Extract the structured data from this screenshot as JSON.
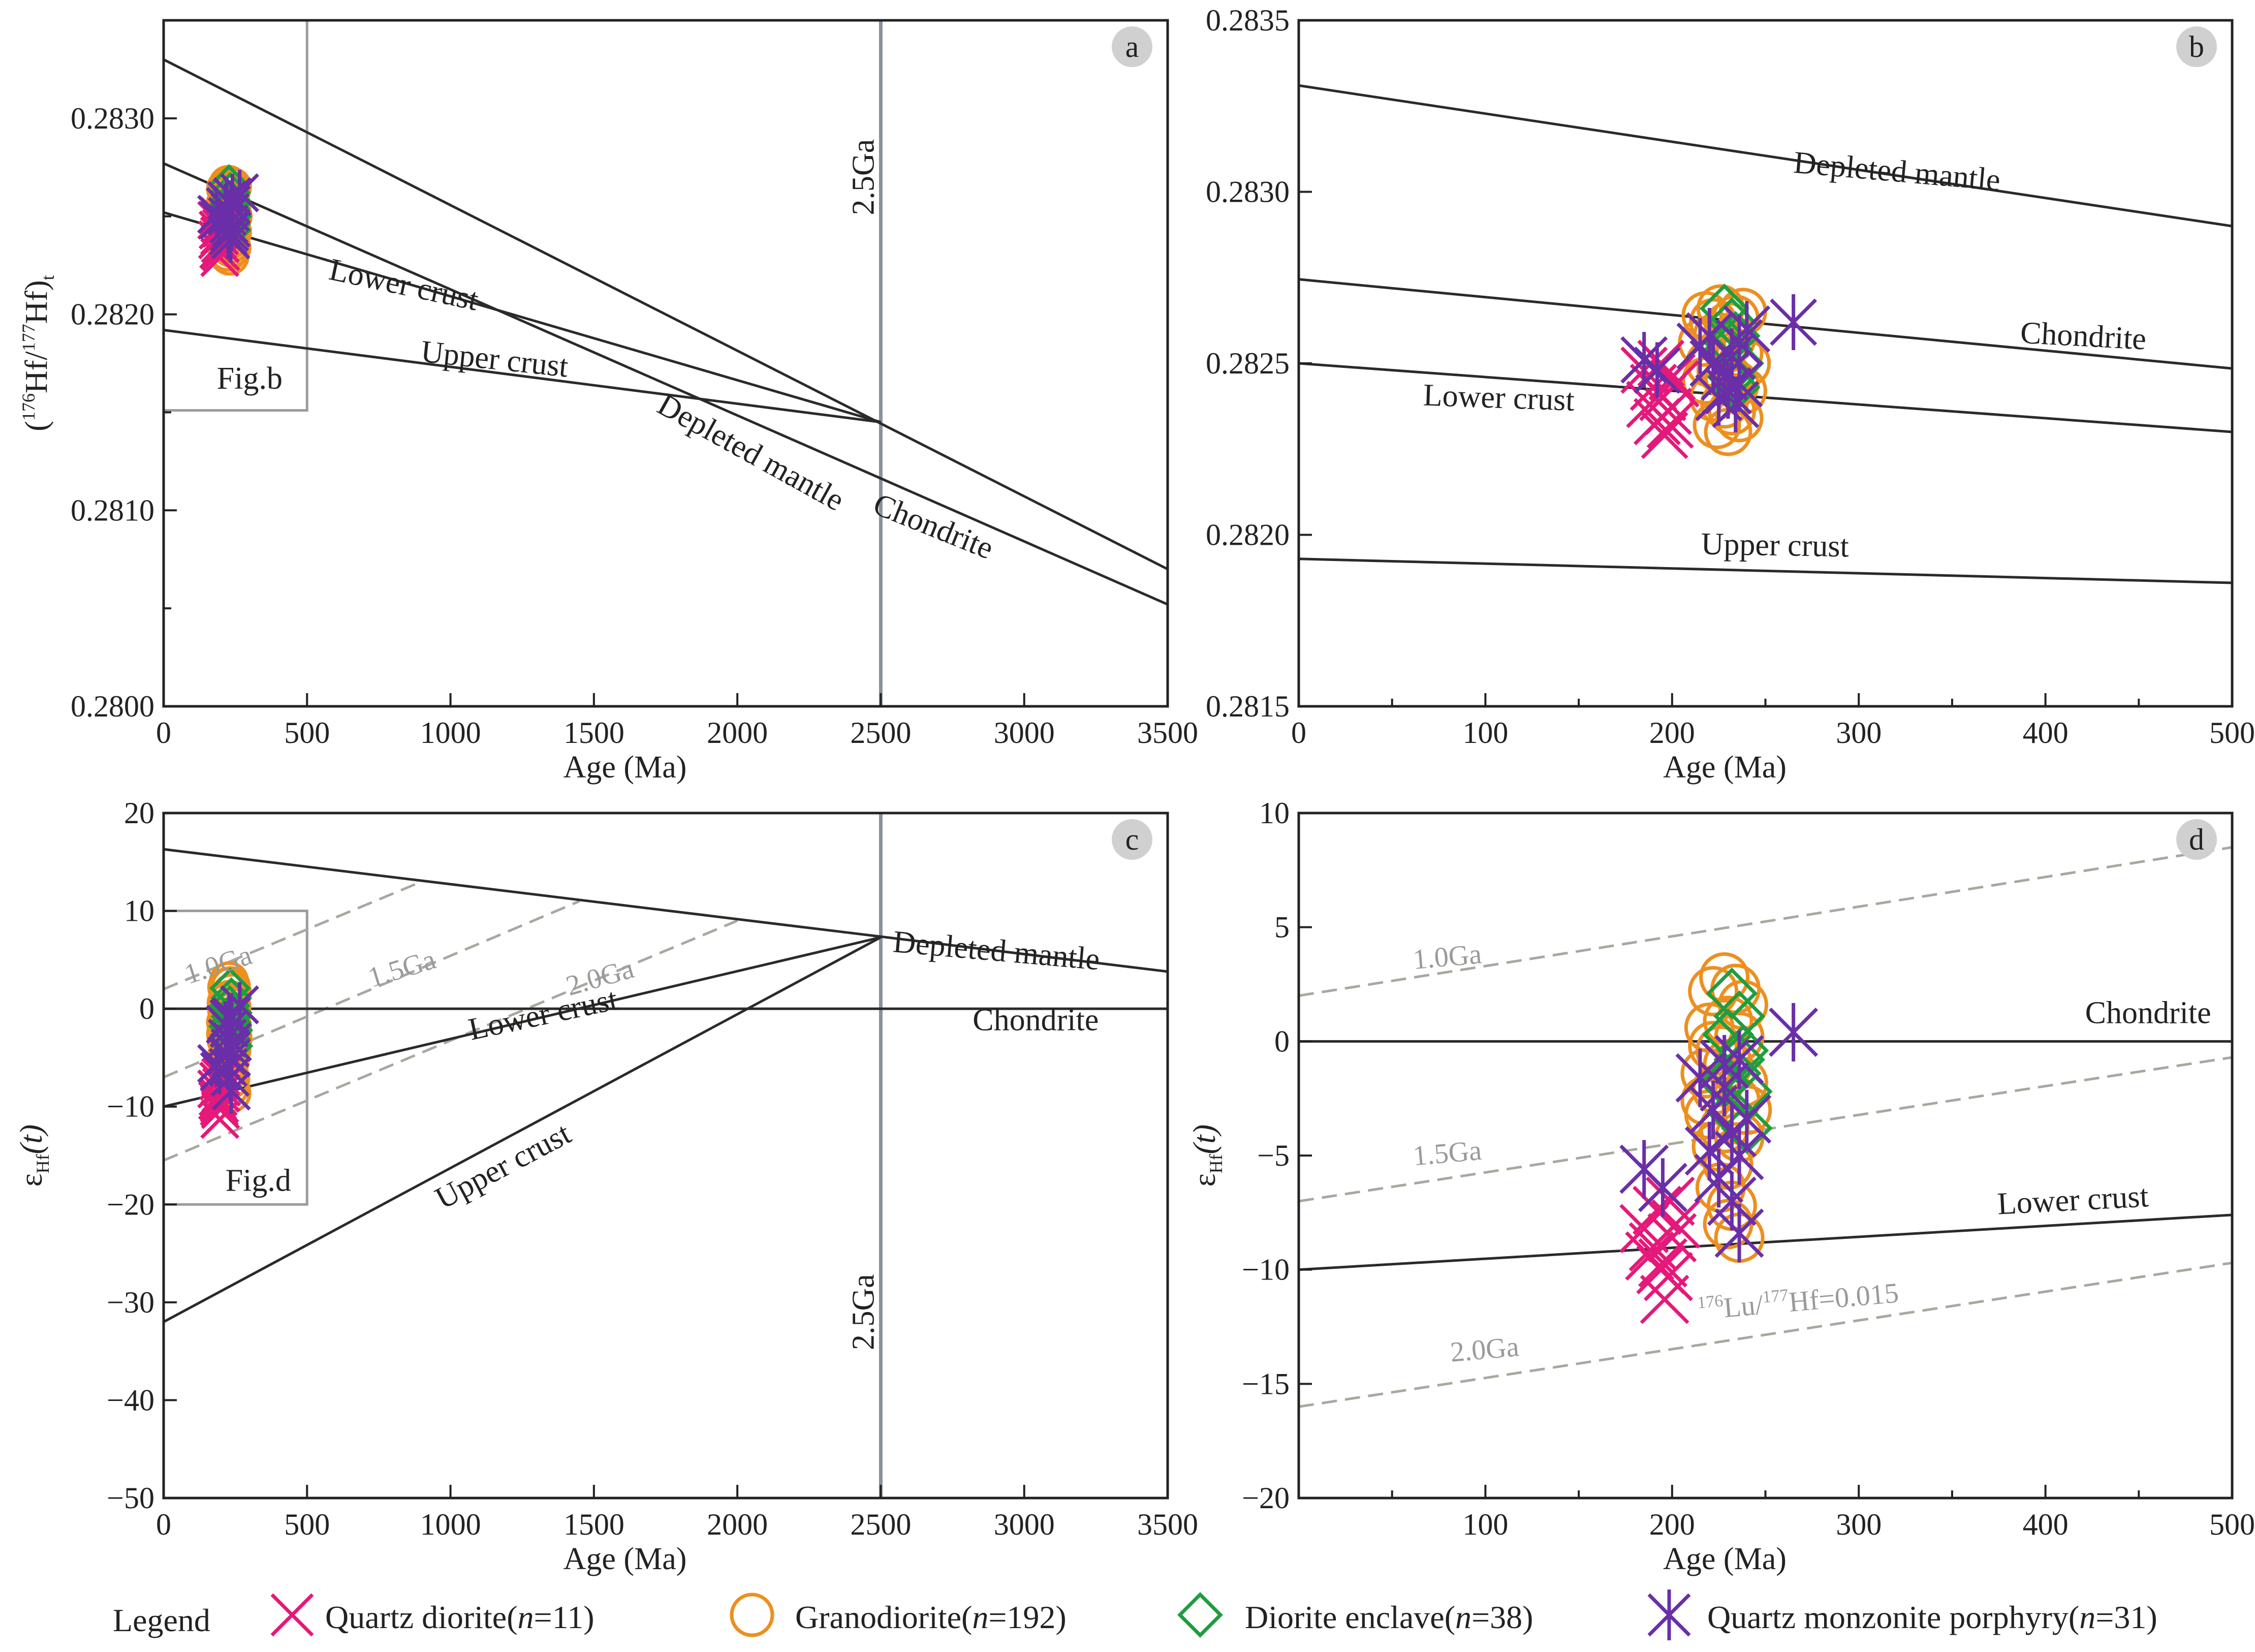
{
  "legend": {
    "title": "Legend",
    "entries": [
      {
        "key": "qd",
        "label": "Quartz diorite(",
        "n": "n",
        "rest": "=11)",
        "color": "#e5197a",
        "marker": "x-mark-icon"
      },
      {
        "key": "gd",
        "label": "Granodiorite(",
        "n": "n",
        "rest": "=192)",
        "color": "#ed8f1f",
        "marker": "circle-mark-icon"
      },
      {
        "key": "de",
        "label": "Diorite enclave(",
        "n": "n",
        "rest": "=38)",
        "color": "#1f9d3f",
        "marker": "diamond-mark-icon"
      },
      {
        "key": "qm",
        "label": "Quartz monzonite porphyry(",
        "n": "n",
        "rest": "=31)",
        "color": "#6a2fa8",
        "marker": "asterisk-mark-icon"
      }
    ]
  },
  "chart_data": [
    {
      "panel": "a",
      "type": "line",
      "xlabel": "Age (Ma)",
      "ylabel": {
        "open": "(",
        "sup1": "176",
        "t1": "Hf/",
        "sup2": "177",
        "t2": "Hf)",
        "sub": "t"
      },
      "xlim": [
        0,
        3500
      ],
      "ylim": [
        0.28,
        0.2835
      ],
      "xticks": [
        0,
        500,
        1000,
        1500,
        2000,
        2500,
        3000,
        3500
      ],
      "yticks": [
        0.28,
        0.281,
        0.282,
        0.283
      ],
      "ytick_labels": [
        "0.2800",
        "0.2810",
        "0.2820",
        "0.2830"
      ],
      "minor_yticks": [
        0.2805,
        0.2815,
        0.2825
      ],
      "vline": {
        "x": 2500,
        "label": "2.5Ga",
        "label_y": 0.2827
      },
      "lines": [
        {
          "name": "Depleted mantle",
          "x": [
            0,
            3500
          ],
          "y": [
            0.2833,
            0.2807
          ],
          "label": "Depleted mantle",
          "lx": 2030,
          "ly": 0.28125,
          "rot": 29
        },
        {
          "name": "Chondrite",
          "x": [
            0,
            3500
          ],
          "y": [
            0.28277,
            0.28052
          ],
          "label": "Chondrite",
          "lx": 2670,
          "ly": 0.28087,
          "rot": 22
        },
        {
          "name": "Lower crust",
          "x": [
            0,
            2500
          ],
          "y": [
            0.28252,
            0.28145
          ],
          "label": "Lower crust",
          "lx": 830,
          "ly": 0.2821,
          "rot": 12
        },
        {
          "name": "Upper crust",
          "x": [
            0,
            2500
          ],
          "y": [
            0.28192,
            0.28145
          ],
          "label": "Upper crust",
          "lx": 1150,
          "ly": 0.28172,
          "rot": 6
        }
      ],
      "inset": {
        "x0": 0,
        "x1": 500,
        "y0": 0.28151,
        "y1": 0.2835,
        "label": "Fig.b",
        "lx": 300,
        "ly": 0.28162
      },
      "badge": "a"
    },
    {
      "panel": "b",
      "type": "line",
      "xlabel": "Age (Ma)",
      "xlim": [
        0,
        500
      ],
      "ylim": [
        0.2815,
        0.2835
      ],
      "xticks": [
        0,
        100,
        200,
        300,
        400,
        500
      ],
      "yticks": [
        0.2815,
        0.282,
        0.2825,
        0.283,
        0.2835
      ],
      "ytick_labels": [
        "0.2815",
        "0.2820",
        "0.2825",
        "0.2830",
        "0.2835"
      ],
      "minor_xticks": [
        50,
        150,
        250,
        350,
        450
      ],
      "lines": [
        {
          "name": "Depleted mantle",
          "x": [
            0,
            500
          ],
          "y": [
            0.28331,
            0.2829
          ],
          "label": "Depleted mantle",
          "lx": 320,
          "ly": 0.28303,
          "rot": 5
        },
        {
          "name": "Chondrite",
          "x": [
            0,
            500
          ],
          "y": [
            0.282745,
            0.282485
          ],
          "label": "Chondrite",
          "lx": 420,
          "ly": 0.28255,
          "rot": 3
        },
        {
          "name": "Lower crust",
          "x": [
            0,
            500
          ],
          "y": [
            0.2825,
            0.2823
          ],
          "label": "Lower crust",
          "lx": 107,
          "ly": 0.28237,
          "rot": 2
        },
        {
          "name": "Upper crust",
          "x": [
            0,
            500
          ],
          "y": [
            0.28193,
            0.28186
          ],
          "label": "Upper crust",
          "lx": 255,
          "ly": 0.28194,
          "rot": 1
        }
      ],
      "badge": "b"
    },
    {
      "panel": "c",
      "type": "line",
      "xlabel": "Age (Ma)",
      "ylabel": {
        "t1": "ε",
        "sub": "Hf",
        "t2": "(t)"
      },
      "xlim": [
        0,
        3500
      ],
      "ylim": [
        -50,
        20
      ],
      "xticks": [
        0,
        500,
        1000,
        1500,
        2000,
        2500,
        3000,
        3500
      ],
      "yticks": [
        -50,
        -40,
        -30,
        -20,
        -10,
        0,
        10,
        20
      ],
      "ytick_labels": [
        "−50",
        "−40",
        "−30",
        "−20",
        "−10",
        "0",
        "10",
        "20"
      ],
      "vline": {
        "x": 2500,
        "label": "2.5Ga",
        "label_y": -31
      },
      "lines": [
        {
          "name": "Depleted mantle",
          "x": [
            0,
            3500
          ],
          "y": [
            16.3,
            3.8
          ],
          "label": "Depleted mantle",
          "lx": 2900,
          "ly": 4.9,
          "rot": 5
        },
        {
          "name": "Chondrite",
          "x": [
            0,
            3500
          ],
          "y": [
            0,
            0
          ],
          "label": "Chondrite",
          "lx": 3040,
          "ly": -2.2,
          "rot": 0
        },
        {
          "name": "Lower crust",
          "x": [
            0,
            2500
          ],
          "y": [
            -10,
            7.3
          ],
          "label": "Lower crust",
          "lx": 1330,
          "ly": -1.6,
          "rot": -12
        },
        {
          "name": "Upper crust",
          "x": [
            0,
            2500
          ],
          "y": [
            -32,
            7.3
          ],
          "label": "Upper crust",
          "lx": 1200,
          "ly": -17,
          "rot": -28
        }
      ],
      "dashed": [
        {
          "name": "1.0Ga",
          "x": [
            0,
            900
          ],
          "y": [
            2,
            13
          ],
          "label": "1.0Ga",
          "lx": 200,
          "ly": 3.6,
          "rot": -18
        },
        {
          "name": "1.5Ga",
          "x": [
            0,
            1450
          ],
          "y": [
            -7,
            11
          ],
          "label": "1.5Ga",
          "lx": 840,
          "ly": 3.2,
          "rot": -17
        },
        {
          "name": "2.0Ga",
          "x": [
            0,
            2000
          ],
          "y": [
            -15.5,
            9
          ],
          "label": "2.0Ga",
          "lx": 1530,
          "ly": 2.3,
          "rot": -16
        }
      ],
      "inset": {
        "x0": 0,
        "x1": 500,
        "y0": -20,
        "y1": 10,
        "label": "Fig.d",
        "lx": 330,
        "ly": -18.6
      },
      "badge": "c"
    },
    {
      "panel": "d",
      "type": "line",
      "xlabel": "Age (Ma)",
      "ylabel": {
        "t1": "ε",
        "sub": "Hf",
        "t2": "(t)"
      },
      "xlim": [
        0,
        500
      ],
      "ylim": [
        -20,
        10
      ],
      "xticks": [
        100,
        200,
        300,
        400,
        500
      ],
      "yticks": [
        -20,
        -15,
        -10,
        -5,
        0,
        5,
        10
      ],
      "ytick_labels": [
        "−20",
        "−15",
        "−10",
        "−5",
        "0",
        "5",
        "10"
      ],
      "minor_xticks": [
        50,
        150,
        250,
        350,
        450
      ],
      "lines": [
        {
          "name": "Chondrite",
          "x": [
            0,
            500
          ],
          "y": [
            0,
            0
          ],
          "label": "Chondrite",
          "lx": 455,
          "ly": 0.8,
          "rot": 0
        },
        {
          "name": "Lower crust",
          "x": [
            0,
            500
          ],
          "y": [
            -10,
            -7.6
          ],
          "label": "Lower crust",
          "lx": 415,
          "ly": -7.4,
          "rot": -3
        }
      ],
      "dashed": [
        {
          "name": "1.0Ga",
          "x": [
            0,
            500
          ],
          "y": [
            2,
            8.5
          ],
          "label": "1.0Ga",
          "lx": 80,
          "ly": 3.3,
          "rot": -5
        },
        {
          "name": "1.5Ga",
          "x": [
            0,
            500
          ],
          "y": [
            -7,
            -0.7
          ],
          "label": "1.5Ga",
          "lx": 80,
          "ly": -5.3,
          "rot": -5
        },
        {
          "name": "2.0Ga",
          "x": [
            0,
            500
          ],
          "y": [
            -16,
            -9.7
          ],
          "label": "2.0Ga",
          "lx": 100,
          "ly": -13.9,
          "rot": -5
        }
      ],
      "ratio_label": {
        "sup1": "176",
        "t1": "Lu/",
        "sup2": "177",
        "t2": "Hf=0.015",
        "lx": 268,
        "ly": -11.8,
        "rot": -5
      },
      "badge": "d"
    }
  ],
  "scatter": {
    "qd": {
      "b": [
        [
          185,
          0.28248
        ],
        [
          190,
          0.28243
        ],
        [
          195,
          0.2824
        ],
        [
          198,
          0.28236
        ],
        [
          200,
          0.28246
        ],
        [
          192,
          0.28233
        ],
        [
          196,
          0.28229
        ],
        [
          202,
          0.28244
        ],
        [
          188,
          0.28238
        ],
        [
          199,
          0.28232
        ],
        [
          194,
          0.2825
        ]
      ],
      "d": [
        [
          185,
          -8.2
        ],
        [
          190,
          -9.0
        ],
        [
          195,
          -9.7
        ],
        [
          198,
          -10.3
        ],
        [
          200,
          -8.6
        ],
        [
          192,
          -7.4
        ],
        [
          196,
          -11.3
        ],
        [
          202,
          -8.0
        ],
        [
          188,
          -9.4
        ],
        [
          199,
          -7.0
        ],
        [
          194,
          -10.0
        ]
      ]
    },
    "gd": {
      "b": [
        [
          218,
          0.28264
        ],
        [
          222,
          0.28262
        ],
        [
          226,
          0.28266
        ],
        [
          230,
          0.28261
        ],
        [
          234,
          0.28263
        ],
        [
          238,
          0.28265
        ],
        [
          224,
          0.28258
        ],
        [
          228,
          0.28255
        ],
        [
          232,
          0.28257
        ],
        [
          236,
          0.28253
        ],
        [
          220,
          0.2825
        ],
        [
          226,
          0.28248
        ],
        [
          230,
          0.28246
        ],
        [
          234,
          0.28244
        ],
        [
          238,
          0.28242
        ],
        [
          222,
          0.2824
        ],
        [
          228,
          0.28238
        ],
        [
          232,
          0.28236
        ],
        [
          236,
          0.28234
        ],
        [
          224,
          0.28232
        ],
        [
          230,
          0.2823
        ],
        [
          216,
          0.28256
        ],
        [
          240,
          0.2825
        ],
        [
          218,
          0.28245
        ]
      ],
      "d": [
        [
          222,
          2.2
        ],
        [
          228,
          2.8
        ],
        [
          234,
          2.3
        ],
        [
          238,
          1.6
        ],
        [
          220,
          0.6
        ],
        [
          226,
          -0.4
        ],
        [
          230,
          0.9
        ],
        [
          236,
          0.2
        ],
        [
          218,
          -1.4
        ],
        [
          224,
          -2.1
        ],
        [
          230,
          -1.0
        ],
        [
          238,
          -1.8
        ],
        [
          220,
          -3.2
        ],
        [
          228,
          -3.8
        ],
        [
          234,
          -2.6
        ],
        [
          240,
          -3.0
        ],
        [
          224,
          -4.6
        ],
        [
          230,
          -5.4
        ],
        [
          236,
          -4.2
        ],
        [
          226,
          -6.4
        ],
        [
          232,
          -7.2
        ],
        [
          236,
          -8.6
        ],
        [
          230,
          -8.0
        ],
        [
          218,
          -2.6
        ],
        [
          222,
          -0.2
        ]
      ]
    },
    "de": {
      "b": [
        [
          228,
          0.28266
        ],
        [
          232,
          0.28262
        ],
        [
          234,
          0.28258
        ],
        [
          230,
          0.28254
        ],
        [
          236,
          0.2825
        ],
        [
          232,
          0.28246
        ],
        [
          234,
          0.28243
        ],
        [
          230,
          0.28256
        ]
      ],
      "d": [
        [
          232,
          2.1
        ],
        [
          236,
          1.1
        ],
        [
          230,
          0.3
        ],
        [
          238,
          -0.4
        ],
        [
          234,
          -1.4
        ],
        [
          240,
          -2.2
        ],
        [
          232,
          -3.1
        ],
        [
          236,
          -0.8
        ],
        [
          240,
          -3.8
        ],
        [
          228,
          -1.8
        ]
      ]
    },
    "qm": {
      "b": [
        [
          185,
          0.28251
        ],
        [
          192,
          0.28248
        ],
        [
          215,
          0.28255
        ],
        [
          222,
          0.2825
        ],
        [
          228,
          0.28246
        ],
        [
          232,
          0.28252
        ],
        [
          236,
          0.28244
        ],
        [
          225,
          0.2824
        ],
        [
          230,
          0.28242
        ],
        [
          236,
          0.28256
        ],
        [
          240,
          0.2826
        ],
        [
          265,
          0.28262
        ],
        [
          220,
          0.28258
        ],
        [
          234,
          0.28238
        ]
      ],
      "d": [
        [
          185,
          -5.6
        ],
        [
          195,
          -6.4
        ],
        [
          215,
          -1.6
        ],
        [
          222,
          -3.0
        ],
        [
          228,
          -2.0
        ],
        [
          232,
          -4.0
        ],
        [
          236,
          -5.0
        ],
        [
          225,
          -6.0
        ],
        [
          232,
          -7.0
        ],
        [
          236,
          -8.4
        ],
        [
          240,
          -3.4
        ],
        [
          265,
          0.4
        ],
        [
          220,
          -4.8
        ],
        [
          236,
          -0.8
        ],
        [
          228,
          -1.0
        ]
      ]
    }
  }
}
